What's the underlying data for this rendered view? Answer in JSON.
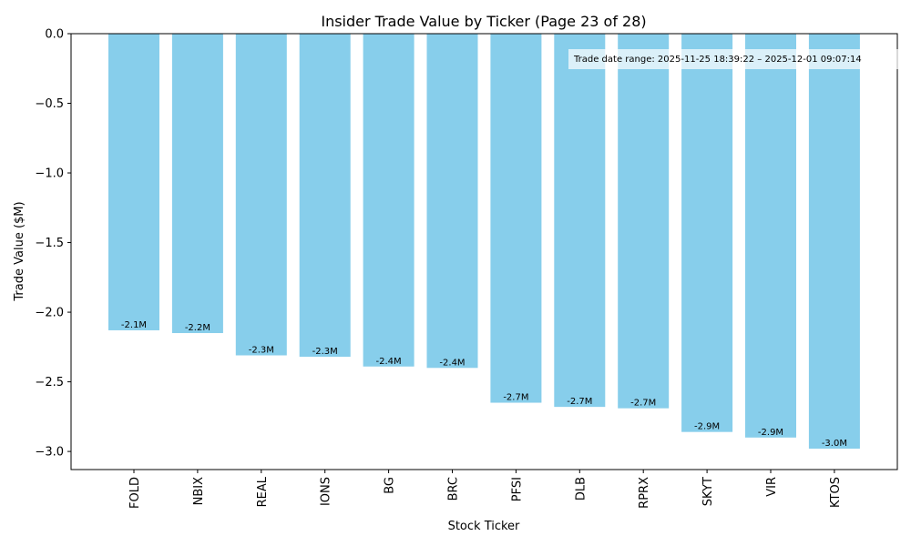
{
  "chart_data": {
    "type": "bar",
    "title": "Insider Trade Value by Ticker (Page 23 of 28)",
    "xlabel": "Stock Ticker",
    "ylabel": "Trade Value ($M)",
    "ylim": [
      -3.13,
      0
    ],
    "yticks": [
      0,
      -0.5,
      -1.0,
      -1.5,
      -2.0,
      -2.5,
      -3.0
    ],
    "ytick_labels": [
      "0.0",
      "−0.5",
      "−1.0",
      "−1.5",
      "−2.0",
      "−2.5",
      "−3.0"
    ],
    "bar_color": "#87ceeb",
    "categories": [
      "FOLD",
      "NBIX",
      "REAL",
      "IONS",
      "BG",
      "BRC",
      "PFSI",
      "DLB",
      "RPRX",
      "SKYT",
      "VIR",
      "KTOS"
    ],
    "values": [
      -2.13,
      -2.15,
      -2.31,
      -2.32,
      -2.39,
      -2.4,
      -2.65,
      -2.68,
      -2.69,
      -2.86,
      -2.9,
      -2.98
    ],
    "data_labels": [
      "-2.1M",
      "-2.2M",
      "-2.3M",
      "-2.3M",
      "-2.4M",
      "-2.4M",
      "-2.7M",
      "-2.7M",
      "-2.7M",
      "-2.9M",
      "-2.9M",
      "-3.0M"
    ],
    "annotation": "Trade date range: 2025-11-25 18:39:22 – 2025-12-01 09:07:14",
    "grid": false,
    "legend": "none"
  }
}
